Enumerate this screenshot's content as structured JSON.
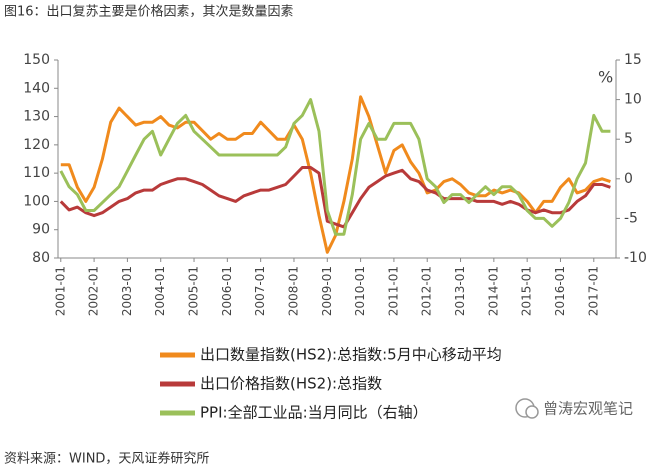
{
  "chart_data": {
    "type": "line",
    "title": "图16：出口复苏主要是价格因素，其次是数量因素",
    "source": "资料来源：WIND，天风证券研究所",
    "watermark": "曾涛宏观笔记",
    "y2_label": "%",
    "x": [
      "2001-01",
      "2001-04",
      "2001-07",
      "2001-10",
      "2002-01",
      "2002-04",
      "2002-07",
      "2002-10",
      "2003-01",
      "2003-04",
      "2003-07",
      "2003-10",
      "2004-01",
      "2004-04",
      "2004-07",
      "2004-10",
      "2005-01",
      "2005-04",
      "2005-07",
      "2005-10",
      "2006-01",
      "2006-04",
      "2006-07",
      "2006-10",
      "2007-01",
      "2007-04",
      "2007-07",
      "2007-10",
      "2008-01",
      "2008-04",
      "2008-07",
      "2008-10",
      "2009-01",
      "2009-04",
      "2009-07",
      "2009-10",
      "2010-01",
      "2010-04",
      "2010-07",
      "2010-10",
      "2011-01",
      "2011-04",
      "2011-07",
      "2011-10",
      "2012-01",
      "2012-04",
      "2012-07",
      "2012-10",
      "2013-01",
      "2013-04",
      "2013-07",
      "2013-10",
      "2014-01",
      "2014-04",
      "2014-07",
      "2014-10",
      "2015-01",
      "2015-04",
      "2015-07",
      "2015-10",
      "2016-01",
      "2016-04",
      "2016-07",
      "2016-10",
      "2017-01",
      "2017-04",
      "2017-07"
    ],
    "xlim": [
      "2000-12",
      "2017-09"
    ],
    "xticks": [
      "2001-01",
      "2002-01",
      "2003-01",
      "2004-01",
      "2005-01",
      "2006-01",
      "2007-01",
      "2008-01",
      "2009-01",
      "2010-01",
      "2011-01",
      "2012-01",
      "2013-01",
      "2014-01",
      "2015-01",
      "2016-01",
      "2017-01"
    ],
    "ylim": [
      80,
      150
    ],
    "yticks": [
      80,
      90,
      100,
      110,
      120,
      130,
      140,
      150
    ],
    "y2lim": [
      -10,
      15
    ],
    "y2ticks": [
      -10,
      -5,
      0,
      5,
      10,
      15
    ],
    "series": [
      {
        "name": "出口数量指数(HS2):总指数:5月中心移动平均",
        "color": "#f08a1d",
        "values": [
          113,
          113,
          105,
          100,
          105,
          115,
          128,
          133,
          130,
          127,
          128,
          128,
          130,
          127,
          126,
          128,
          128,
          125,
          122,
          124,
          122,
          122,
          124,
          124,
          128,
          125,
          122,
          122,
          127,
          122,
          110,
          95,
          82,
          88,
          100,
          115,
          137,
          130,
          120,
          110,
          118,
          120,
          114,
          110,
          103,
          104,
          107,
          108,
          106,
          103,
          102,
          102,
          104,
          103,
          104,
          103,
          100,
          96,
          100,
          100,
          105,
          108,
          103,
          104,
          107,
          108,
          107
        ]
      },
      {
        "name": "出口价格指数(HS2):总指数",
        "color": "#b83a3a",
        "values": [
          100,
          97,
          98,
          96,
          95,
          96,
          98,
          100,
          101,
          103,
          104,
          104,
          106,
          107,
          108,
          108,
          107,
          106,
          104,
          102,
          101,
          100,
          102,
          103,
          104,
          104,
          105,
          106,
          109,
          112,
          112,
          110,
          93,
          92,
          91,
          96,
          101,
          105,
          107,
          109,
          110,
          111,
          108,
          107,
          104,
          103,
          101,
          101,
          101,
          101,
          100,
          100,
          100,
          99,
          100,
          99,
          97,
          96,
          97,
          96,
          96,
          97,
          100,
          102,
          106,
          106,
          105
        ]
      },
      {
        "name": "PPI:全部工业品:当月同比（右轴）",
        "color": "#9bc05a",
        "axis": "y2",
        "values": [
          1,
          -1,
          -2,
          -4,
          -4,
          -3,
          -2,
          -1,
          1,
          3,
          5,
          6,
          3,
          5,
          7,
          8,
          6,
          5,
          4,
          3,
          3,
          3,
          3,
          3,
          3,
          3,
          3,
          4,
          7,
          8,
          10,
          6,
          -4,
          -7,
          -7,
          -2,
          5,
          7,
          5,
          5,
          7,
          7,
          7,
          5,
          0,
          -1,
          -3,
          -2,
          -2,
          -3,
          -2,
          -1,
          -2,
          -1,
          -1,
          -2,
          -4,
          -5,
          -5,
          -6,
          -5,
          -3,
          0,
          2,
          8,
          6,
          6
        ]
      }
    ]
  }
}
